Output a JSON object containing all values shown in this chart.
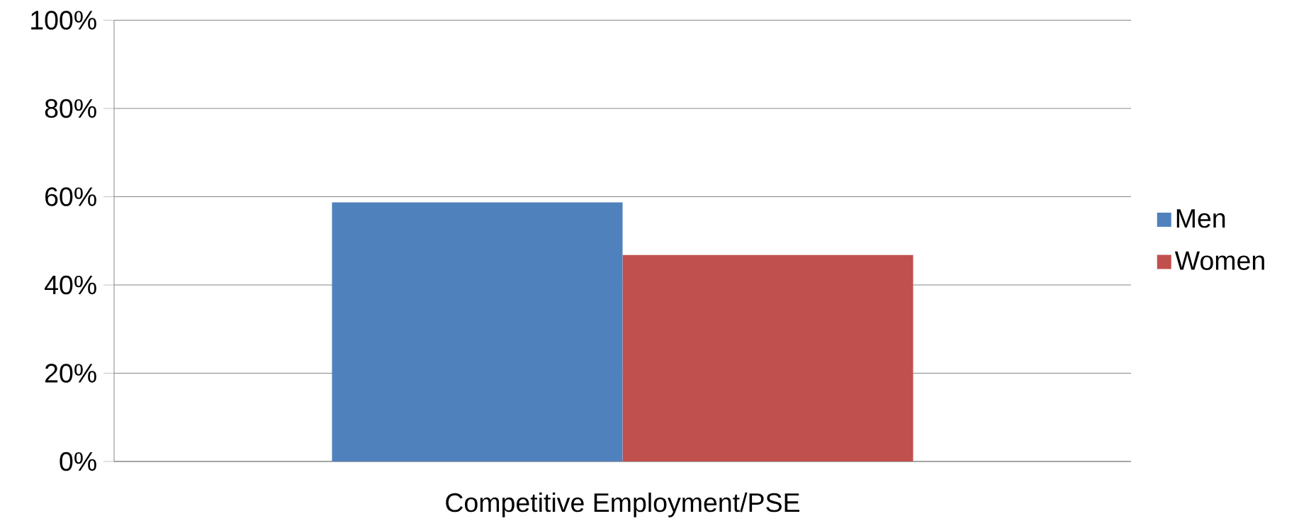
{
  "chart_data": {
    "type": "bar",
    "categories": [
      "Competitive Employment/PSE"
    ],
    "series": [
      {
        "name": "Men",
        "color": "#4f81bd",
        "values": [
          58.7
        ]
      },
      {
        "name": "Women",
        "color": "#c0504d",
        "values": [
          46.8
        ]
      }
    ],
    "ylim": [
      0,
      100
    ],
    "yticks": [
      {
        "value": 0,
        "label": "0%"
      },
      {
        "value": 20,
        "label": "20%"
      },
      {
        "value": 40,
        "label": "40%"
      },
      {
        "value": 60,
        "label": "60%"
      },
      {
        "value": 80,
        "label": "80%"
      },
      {
        "value": 100,
        "label": "100%"
      }
    ],
    "grid": "y",
    "legend": "right"
  }
}
